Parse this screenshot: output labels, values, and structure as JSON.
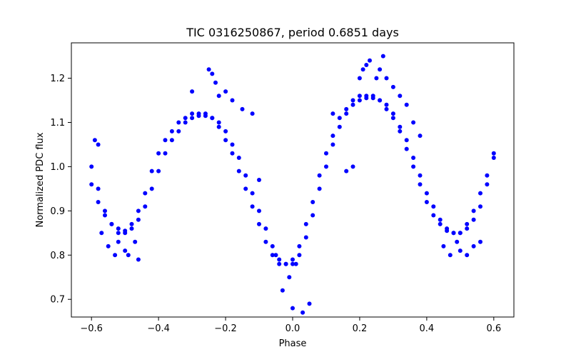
{
  "chart_data": {
    "type": "scatter",
    "title": "TIC 0316250867, period 0.6851 days",
    "xlabel": "Phase",
    "ylabel": "Normalized PDC flux",
    "xlim": [
      -0.66,
      0.66
    ],
    "ylim": [
      0.66,
      1.28
    ],
    "xticks": [
      -0.6,
      -0.4,
      -0.2,
      0.0,
      0.2,
      0.4,
      0.6
    ],
    "xtick_labels": [
      "−0.6",
      "−0.4",
      "−0.2",
      "0.0",
      "0.2",
      "0.4",
      "0.6"
    ],
    "yticks": [
      0.7,
      0.8,
      0.9,
      1.0,
      1.1,
      1.2
    ],
    "ytick_labels": [
      "0.7",
      "0.8",
      "0.9",
      "1.0",
      "1.1",
      "1.2"
    ],
    "grid": false,
    "marker_color": "#0000ff",
    "series": [
      {
        "name": "",
        "x": [
          -0.6,
          -0.58,
          -0.56,
          -0.54,
          -0.52,
          -0.5,
          -0.48,
          -0.46,
          -0.44,
          -0.42,
          -0.4,
          -0.38,
          -0.36,
          -0.34,
          -0.32,
          -0.3,
          -0.28,
          -0.26,
          -0.24,
          -0.22,
          -0.2,
          -0.18,
          -0.16,
          -0.14,
          -0.12,
          -0.1,
          -0.08,
          -0.06,
          -0.04,
          -0.02,
          0.0,
          0.02,
          0.04,
          0.06,
          0.08,
          0.1,
          0.12,
          0.14,
          0.16,
          0.18,
          0.2,
          0.22,
          0.24,
          0.26,
          0.28,
          0.3,
          0.32,
          0.34,
          0.36,
          0.38,
          0.4,
          0.42,
          0.44,
          0.46,
          0.48,
          0.5,
          0.52,
          0.54,
          0.56,
          0.58,
          0.6
        ],
        "y": [
          0.96,
          0.92,
          0.89,
          0.87,
          0.86,
          0.855,
          0.86,
          0.88,
          0.91,
          0.95,
          0.99,
          1.03,
          1.06,
          1.08,
          1.1,
          1.11,
          1.115,
          1.115,
          1.11,
          1.1,
          1.08,
          1.05,
          1.02,
          0.98,
          0.94,
          0.9,
          0.86,
          0.82,
          0.79,
          0.78,
          0.78,
          0.8,
          0.84,
          0.89,
          0.95,
          1.0,
          1.05,
          1.09,
          1.12,
          1.14,
          1.15,
          1.155,
          1.155,
          1.15,
          1.14,
          1.12,
          1.09,
          1.06,
          1.02,
          0.98,
          0.94,
          0.91,
          0.88,
          0.86,
          0.85,
          0.85,
          0.86,
          0.88,
          0.91,
          0.96,
          1.02
        ]
      },
      {
        "name": "",
        "x": [
          -0.6,
          -0.58,
          -0.56,
          -0.54,
          -0.52,
          -0.5,
          -0.48,
          -0.46,
          -0.44,
          -0.42,
          -0.4,
          -0.38,
          -0.36,
          -0.34,
          -0.32,
          -0.3,
          -0.28,
          -0.26,
          -0.24,
          -0.22,
          -0.2,
          -0.18,
          -0.16,
          -0.14,
          -0.12,
          -0.1,
          -0.08,
          -0.06,
          -0.04,
          -0.02,
          0.0,
          0.02,
          0.04,
          0.06,
          0.08,
          0.1,
          0.12,
          0.14,
          0.16,
          0.18,
          0.2,
          0.22,
          0.24,
          0.26,
          0.28,
          0.3,
          0.32,
          0.34,
          0.36,
          0.38,
          0.4,
          0.42,
          0.44,
          0.46,
          0.48,
          0.5,
          0.52,
          0.54,
          0.56,
          0.58,
          0.6
        ],
        "y": [
          1.0,
          0.95,
          0.9,
          0.87,
          0.85,
          0.85,
          0.87,
          0.9,
          0.94,
          0.99,
          1.03,
          1.06,
          1.08,
          1.1,
          1.11,
          1.12,
          1.12,
          1.12,
          1.11,
          1.09,
          1.06,
          1.03,
          0.99,
          0.95,
          0.91,
          0.87,
          0.83,
          0.8,
          0.78,
          0.78,
          0.79,
          0.82,
          0.87,
          0.92,
          0.98,
          1.03,
          1.07,
          1.11,
          1.13,
          1.15,
          1.16,
          1.16,
          1.16,
          1.15,
          1.13,
          1.11,
          1.08,
          1.04,
          1.0,
          0.96,
          0.92,
          0.89,
          0.87,
          0.855,
          0.85,
          0.85,
          0.87,
          0.9,
          0.94,
          0.98,
          1.03
        ]
      },
      {
        "name": "",
        "x": [
          -0.59,
          -0.58,
          -0.57,
          -0.55,
          -0.53,
          -0.52,
          -0.5,
          -0.49,
          -0.47,
          -0.46,
          -0.3,
          -0.25,
          -0.24,
          -0.23,
          -0.22,
          -0.2,
          -0.18,
          -0.15,
          -0.12,
          -0.1,
          -0.05,
          -0.03,
          -0.01,
          0.0,
          0.01,
          0.03,
          0.05,
          0.12,
          0.16,
          0.18,
          0.2,
          0.21,
          0.22,
          0.23,
          0.25,
          0.26,
          0.27,
          0.28,
          0.3,
          0.32,
          0.34,
          0.36,
          0.38,
          0.45,
          0.47,
          0.49,
          0.5,
          0.52,
          0.54,
          0.56
        ],
        "y": [
          1.06,
          1.05,
          0.85,
          0.82,
          0.8,
          0.83,
          0.81,
          0.8,
          0.83,
          0.79,
          1.17,
          1.22,
          1.21,
          1.19,
          1.16,
          1.17,
          1.15,
          1.13,
          1.12,
          0.97,
          0.8,
          0.72,
          0.75,
          0.68,
          0.78,
          0.67,
          0.69,
          1.12,
          0.99,
          1.0,
          1.2,
          1.22,
          1.23,
          1.24,
          1.2,
          1.22,
          1.25,
          1.2,
          1.18,
          1.16,
          1.14,
          1.1,
          1.07,
          0.82,
          0.8,
          0.83,
          0.81,
          0.8,
          0.82,
          0.83
        ]
      }
    ]
  }
}
